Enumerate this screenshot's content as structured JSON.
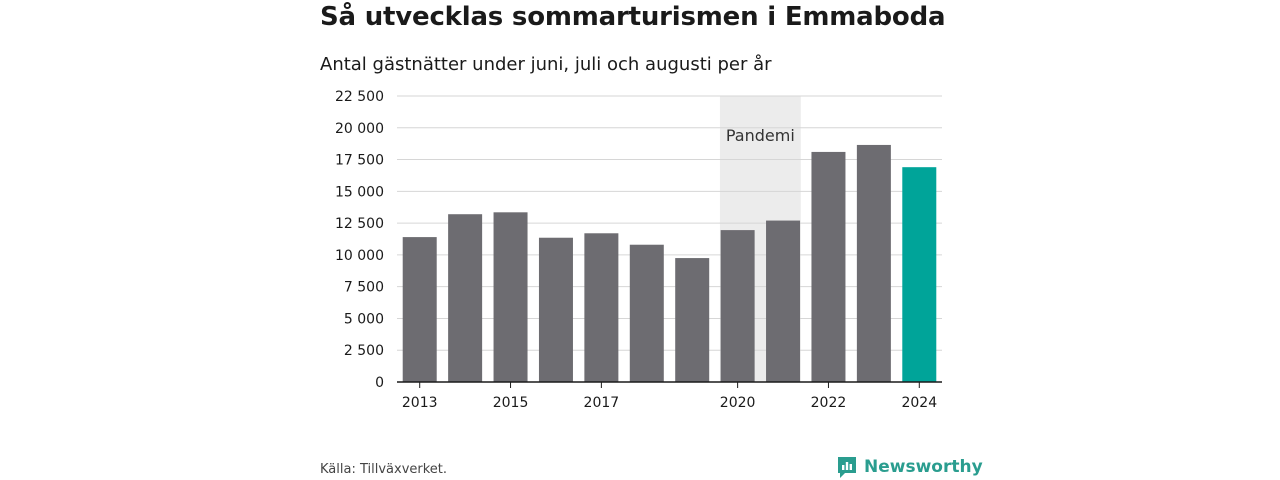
{
  "title": "Så utvecklas sommarturismen i Emmaboda",
  "subtitle": "Antal gästnätter under juni, juli och augusti per år",
  "source": "Källa: Tillväxverket.",
  "brand": {
    "name": "Newsworthy",
    "icon": "bar-chart-chat-icon"
  },
  "colors": {
    "bar": "#6d6c71",
    "highlight": "#00a499",
    "band": "#ececec",
    "grid": "#d6d6d6",
    "brand": "#2a9d8f"
  },
  "chart_data": {
    "type": "bar",
    "title": "Så utvecklas sommarturismen i Emmaboda",
    "subtitle": "Antal gästnätter under juni, juli och augusti per år",
    "xlabel": "",
    "ylabel": "",
    "categories": [
      "2013",
      "2014",
      "2015",
      "2016",
      "2017",
      "2018",
      "2019",
      "2020",
      "2021",
      "2022",
      "2023",
      "2024"
    ],
    "values": [
      11400,
      13200,
      13350,
      11350,
      11700,
      10800,
      9750,
      11950,
      12700,
      18100,
      18650,
      16900
    ],
    "highlight_category": "2024",
    "x_tick_labels": [
      "2013",
      "2015",
      "2017",
      "2020",
      "2022",
      "2024"
    ],
    "y_ticks": [
      0,
      2500,
      5000,
      7500,
      10000,
      12500,
      15000,
      17500,
      20000,
      22500
    ],
    "y_tick_labels": [
      "0",
      "2 500",
      "5 000",
      "7 500",
      "10 000",
      "12 500",
      "15 000",
      "17 500",
      "20 000",
      "22 500"
    ],
    "ylim": [
      0,
      22500
    ],
    "grid": true,
    "legend": "none",
    "annotations": [
      {
        "label": "Pandemi",
        "from": "2020",
        "to": "2021"
      }
    ]
  }
}
